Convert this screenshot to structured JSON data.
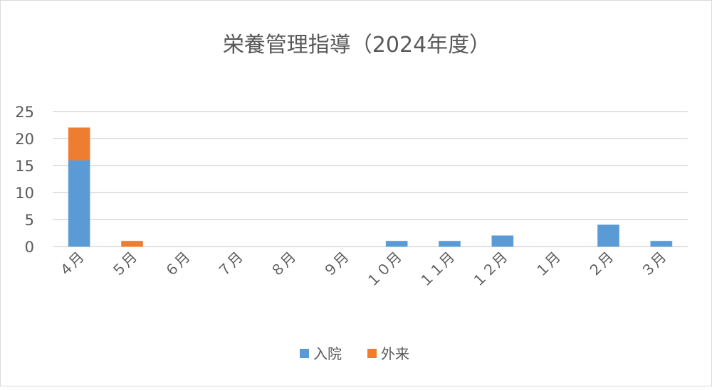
{
  "chart_data": {
    "type": "bar",
    "stacked": true,
    "title": "栄養管理指導（2024年度）",
    "categories": [
      "４月",
      "５月",
      "６月",
      "７月",
      "８月",
      "９月",
      "１０月",
      "１１月",
      "１２月",
      "１月",
      "２月",
      "３月"
    ],
    "series": [
      {
        "name": "入院",
        "color": "#5b9bd5",
        "values": [
          16,
          0,
          0,
          0,
          0,
          0,
          1,
          1,
          2,
          0,
          4,
          1
        ]
      },
      {
        "name": "外来",
        "color": "#ed7d31",
        "values": [
          6,
          1,
          0,
          0,
          0,
          0,
          0,
          0,
          0,
          0,
          0,
          0
        ]
      }
    ],
    "ylim": [
      0,
      25
    ],
    "yticks": [
      0,
      5,
      10,
      15,
      20,
      25
    ],
    "grid": true,
    "legend": "bottom",
    "xlabel": "",
    "ylabel": ""
  }
}
